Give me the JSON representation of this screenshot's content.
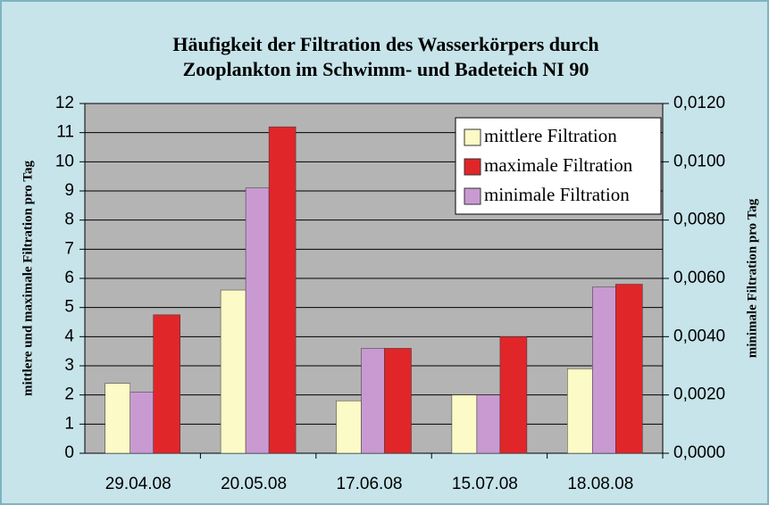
{
  "chart_data": {
    "type": "bar",
    "title": [
      "Häufigkeit der Filtration des Wasserkörpers durch",
      "Zooplankton im Schwimm- und Badeteich NI 90"
    ],
    "ylabel": "mittlere und maximale Filtration pro Tag",
    "y2label": "minimale Filtration pro Tag",
    "categories": [
      "29.04.08",
      "20.05.08",
      "17.06.08",
      "15.07.08",
      "18.08.08"
    ],
    "series": [
      {
        "name": "mittlere Filtration",
        "color": "#fcfac6",
        "values": [
          2.4,
          5.6,
          1.8,
          2.0,
          2.9
        ]
      },
      {
        "name": "maximale Filtration",
        "color": "#e1262a",
        "values": [
          4.75,
          11.2,
          3.6,
          4.0,
          5.8
        ]
      },
      {
        "name": "minimale Filtration",
        "color": "#c99ad2",
        "axis": "y2",
        "values": [
          0.0021,
          0.0091,
          0.0036,
          0.002,
          0.0057
        ]
      }
    ],
    "ylim": [
      0,
      12
    ],
    "yticks": [
      0,
      1,
      2,
      3,
      4,
      5,
      6,
      7,
      8,
      9,
      10,
      11,
      12
    ],
    "y2lim": [
      0,
      0.012
    ],
    "y2ticks": [
      {
        "value": 0,
        "label": "0,0000"
      },
      {
        "value": 0.002,
        "label": "0,0020"
      },
      {
        "value": 0.004,
        "label": "0,0040"
      },
      {
        "value": 0.006,
        "label": "0,0060"
      },
      {
        "value": 0.008,
        "label": "0,0080"
      },
      {
        "value": 0.01,
        "label": "0,0100"
      },
      {
        "value": 0.012,
        "label": "0,0120"
      }
    ],
    "grid": true,
    "legend": "top-right"
  }
}
